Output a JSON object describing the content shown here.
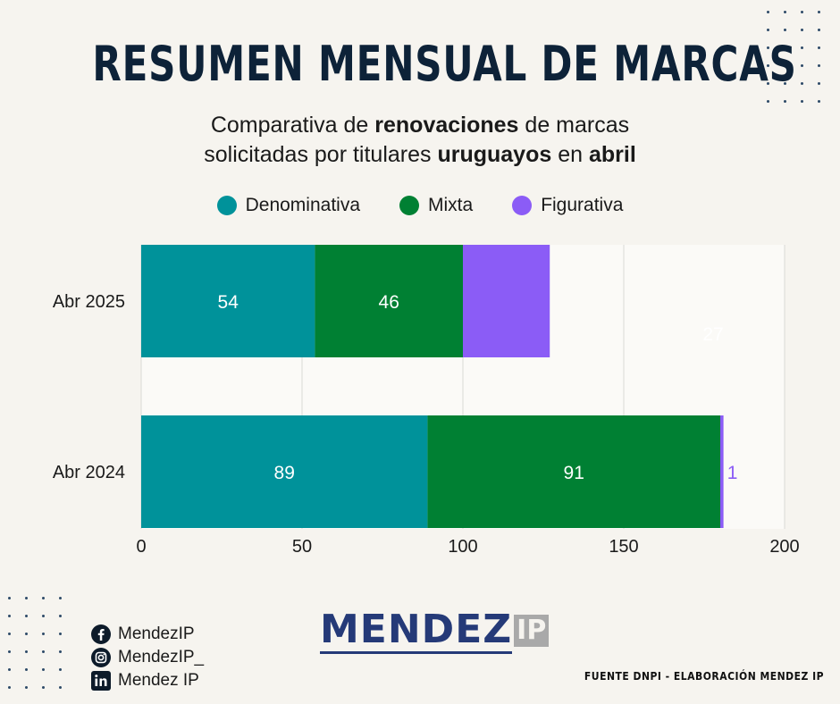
{
  "header": {
    "title": "RESUMEN MENSUAL DE MARCAS",
    "subtitle_parts": [
      {
        "text": "Comparativa de ",
        "bold": false
      },
      {
        "text": "renovaciones",
        "bold": true
      },
      {
        "text": " de marcas",
        "bold": false
      },
      {
        "text": "\n",
        "bold": false
      },
      {
        "text": "solicitadas por titulares ",
        "bold": false
      },
      {
        "text": "uruguayos",
        "bold": true
      },
      {
        "text": " en ",
        "bold": false
      },
      {
        "text": "abril",
        "bold": true
      }
    ]
  },
  "chart_data": {
    "type": "bar",
    "orientation": "horizontal",
    "stacked": true,
    "categories": [
      "Abr 2025",
      "Abr 2024"
    ],
    "series": [
      {
        "name": "Denominativa",
        "color": "#00929a",
        "values": [
          54,
          89
        ]
      },
      {
        "name": "Mixta",
        "color": "#008033",
        "values": [
          46,
          91
        ]
      },
      {
        "name": "Figurativa",
        "color": "#8b5cf6",
        "values": [
          27,
          1
        ]
      }
    ],
    "xlim": [
      0,
      200
    ],
    "xticks": [
      0,
      50,
      100,
      150,
      200
    ],
    "grid": true,
    "legend": "top"
  },
  "socials": [
    {
      "icon": "facebook-icon",
      "label": "MendezIP"
    },
    {
      "icon": "instagram-icon",
      "label": "MendezIP_"
    },
    {
      "icon": "linkedin-icon",
      "label": "Mendez IP"
    }
  ],
  "logo": {
    "word": "MENDEZ",
    "suffix": "IP"
  },
  "source": "FUENTE DNPI - ELABORACIÓN MENDEZ IP"
}
